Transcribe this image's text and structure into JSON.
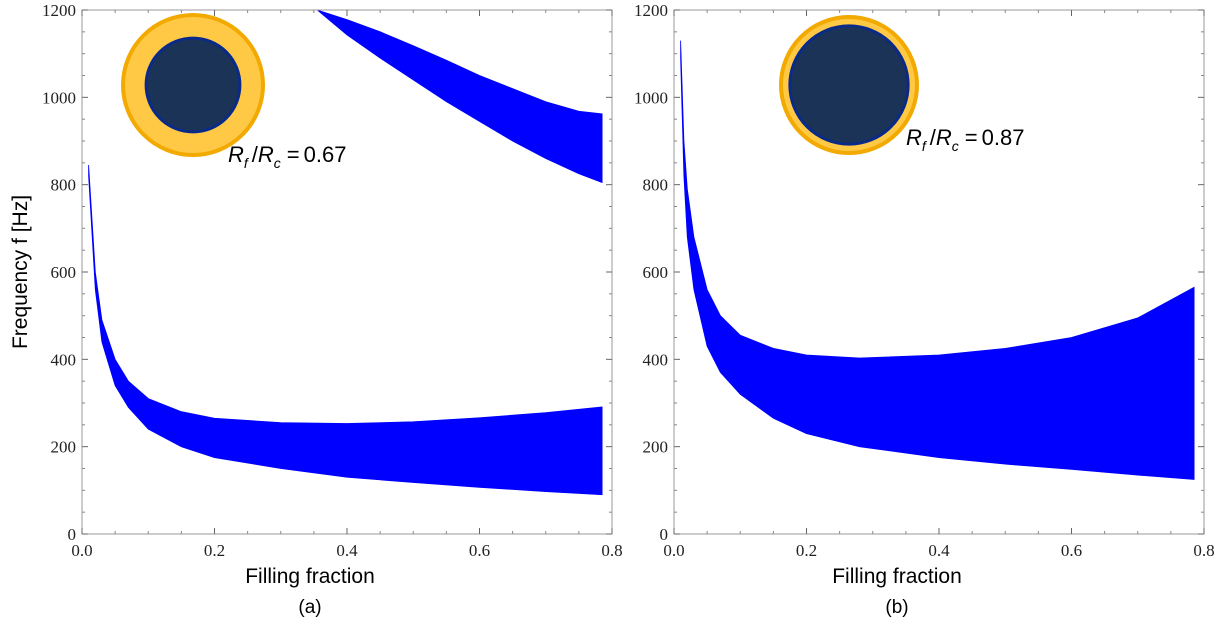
{
  "chart_data": [
    {
      "type": "area",
      "panel_label": "(a)",
      "xlabel": "Filling fraction",
      "ylabel": "Frequency f [Hz]",
      "xlim": [
        0.0,
        0.8
      ],
      "ylim": [
        0,
        1200
      ],
      "xticks": [
        "0.0",
        "0.2",
        "0.4",
        "0.6",
        "0.8"
      ],
      "yticks": [
        "0",
        "200",
        "400",
        "600",
        "800",
        "1000",
        "1200"
      ],
      "annotation": {
        "symbol1": "R",
        "sub1": "f",
        "symbol2": "R",
        "sub2": "c",
        "value": "0.67"
      },
      "inset": {
        "shell_color": "#FFC845",
        "shell_edge": "#F2A900",
        "core_color": "#1B3356",
        "core_edge": "#0A2A8A",
        "core_ratio": 0.67
      },
      "fill_color": "#0000FF",
      "series": [
        {
          "x": [
            0.01,
            0.02,
            0.03,
            0.05,
            0.07,
            0.1,
            0.15,
            0.2,
            0.3,
            0.4,
            0.5,
            0.6,
            0.7,
            0.785
          ],
          "lower": [
            820,
            560,
            440,
            340,
            290,
            240,
            200,
            175,
            150,
            130,
            118,
            107,
            97,
            90
          ],
          "upper": [
            845,
            600,
            490,
            400,
            350,
            310,
            280,
            265,
            255,
            253,
            257,
            266,
            278,
            291
          ]
        },
        {
          "x": [
            0.355,
            0.4,
            0.45,
            0.5,
            0.55,
            0.6,
            0.65,
            0.7,
            0.75,
            0.785
          ],
          "lower": [
            1200,
            1143,
            1090,
            1040,
            990,
            945,
            900,
            860,
            825,
            805
          ],
          "upper": [
            1200,
            1178,
            1150,
            1118,
            1085,
            1050,
            1020,
            990,
            968,
            962
          ]
        }
      ]
    },
    {
      "type": "area",
      "panel_label": "(b)",
      "xlabel": "Filling fraction",
      "xlim": [
        0.0,
        0.8
      ],
      "ylim": [
        0,
        1200
      ],
      "xticks": [
        "0.0",
        "0.2",
        "0.4",
        "0.6",
        "0.8"
      ],
      "yticks": [
        "0",
        "200",
        "400",
        "600",
        "800",
        "1000",
        "1200"
      ],
      "annotation": {
        "symbol1": "R",
        "sub1": "f",
        "symbol2": "R",
        "sub2": "c",
        "value": "0.87"
      },
      "inset": {
        "shell_color": "#FFC845",
        "shell_edge": "#F2A900",
        "core_color": "#1B3356",
        "core_edge": "#0A2A8A",
        "core_ratio": 0.87
      },
      "fill_color": "#0000FF",
      "series": [
        {
          "x": [
            0.01,
            0.015,
            0.02,
            0.03,
            0.05,
            0.07,
            0.1,
            0.15,
            0.2,
            0.28,
            0.4,
            0.5,
            0.6,
            0.7,
            0.785
          ],
          "lower": [
            1090,
            820,
            680,
            560,
            430,
            370,
            320,
            265,
            230,
            200,
            175,
            160,
            148,
            135,
            125
          ],
          "upper": [
            1130,
            900,
            790,
            680,
            560,
            500,
            455,
            425,
            410,
            403,
            410,
            425,
            450,
            495,
            565
          ]
        }
      ]
    }
  ]
}
